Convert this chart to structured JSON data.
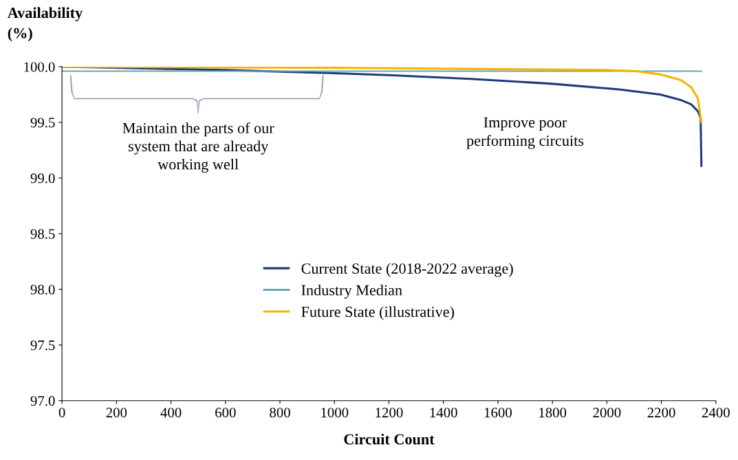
{
  "chart_data": {
    "type": "line",
    "xlabel": "Circuit Count",
    "ylabel": "Availability\n(%)",
    "xlim": [
      0,
      2400
    ],
    "xticks": [
      0,
      200,
      400,
      600,
      800,
      1000,
      1200,
      1400,
      1600,
      1800,
      2000,
      2200,
      2400
    ],
    "ylim": [
      97,
      100
    ],
    "yticks": [
      {
        "value": 97,
        "label": "97.0"
      },
      {
        "value": 97.5,
        "label": "97.5"
      },
      {
        "value": 98,
        "label": "98.0"
      },
      {
        "value": 98.5,
        "label": "98.5"
      },
      {
        "value": 99,
        "label": "99.0"
      },
      {
        "value": 99.5,
        "label": "99.5"
      },
      {
        "value": 100,
        "label": "100.0"
      }
    ],
    "grid": false,
    "legend": "bottom",
    "marker": "none",
    "line_style": "solid",
    "series": [
      {
        "name": "Current State (2018-2022 average)",
        "color": "#1f3a7a",
        "x": [
          0,
          100,
          300,
          600,
          959,
          1200,
          1500,
          1792,
          2044,
          2196,
          2272,
          2309,
          2334,
          2344,
          2347
        ],
        "values": [
          100.0,
          99.995,
          99.985,
          99.97,
          99.945,
          99.924,
          99.89,
          99.848,
          99.796,
          99.75,
          99.7,
          99.663,
          99.6,
          99.54,
          99.11
        ]
      },
      {
        "name": "Industry Median",
        "color": "#5fa8b4",
        "x": [
          0,
          2347
        ],
        "values": [
          99.96,
          99.96
        ]
      },
      {
        "name": "Future State (illustrative)",
        "color": "#f5b400",
        "x": [
          0,
          1000,
          2000,
          2107,
          2196,
          2272,
          2309,
          2334,
          2347
        ],
        "values": [
          100.0,
          99.99,
          99.97,
          99.96,
          99.93,
          99.88,
          99.817,
          99.716,
          99.5
        ]
      }
    ],
    "annotations": [
      "Maintain the parts of our\nsystem that are already\nworking well",
      "Improve poor\nperforming circuits"
    ]
  }
}
